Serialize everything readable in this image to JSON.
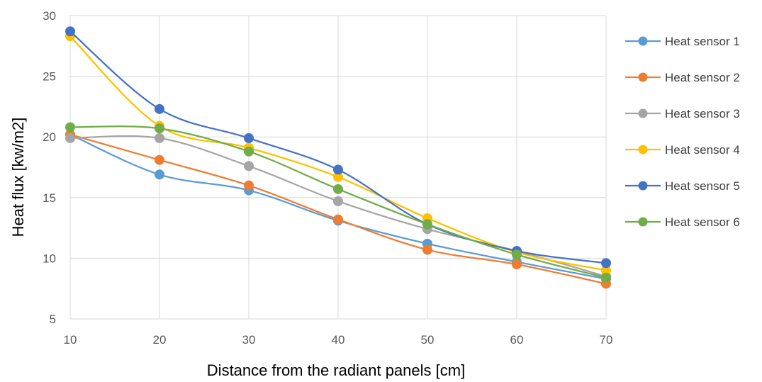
{
  "chart_data": {
    "type": "line",
    "title": "",
    "xlabel": "Distance from the radiant panels [cm]",
    "ylabel": "Heat flux [kw/m2]",
    "x": [
      10,
      20,
      30,
      40,
      50,
      60,
      70
    ],
    "xlim": [
      10,
      70
    ],
    "ylim": [
      5,
      30
    ],
    "xticks": [
      "10",
      "20",
      "30",
      "40",
      "50",
      "60",
      "70"
    ],
    "yticks": [
      "5",
      "10",
      "15",
      "20",
      "25",
      "30"
    ],
    "grid": true,
    "smooth": true,
    "legend_position": "right",
    "series": [
      {
        "name": "Heat sensor 1",
        "color": "#5B9BD5",
        "values": [
          20.2,
          16.9,
          15.6,
          13.1,
          11.2,
          9.7,
          8.3
        ]
      },
      {
        "name": "Heat sensor 2",
        "color": "#ED7D31",
        "values": [
          20.2,
          18.1,
          16.0,
          13.2,
          10.7,
          9.5,
          7.9
        ]
      },
      {
        "name": "Heat sensor 3",
        "color": "#A5A5A5",
        "values": [
          19.9,
          19.9,
          17.6,
          14.7,
          12.4,
          10.6,
          8.5
        ]
      },
      {
        "name": "Heat sensor 4",
        "color": "#FFC000",
        "values": [
          28.3,
          20.9,
          19.1,
          16.7,
          13.3,
          10.5,
          9.0
        ]
      },
      {
        "name": "Heat sensor 5",
        "color": "#4472C4",
        "values": [
          28.7,
          22.3,
          19.9,
          17.3,
          12.8,
          10.6,
          9.6
        ]
      },
      {
        "name": "Heat sensor 6",
        "color": "#70AD47",
        "values": [
          20.8,
          20.7,
          18.8,
          15.7,
          12.8,
          10.3,
          8.4
        ]
      }
    ]
  }
}
